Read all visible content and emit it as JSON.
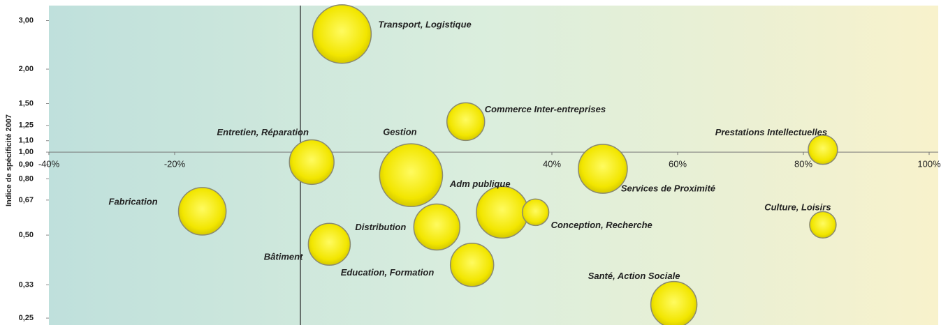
{
  "chart_data": {
    "type": "bubble",
    "y_label": "Indice de spécificité 2007",
    "y_log": true,
    "color": "#f2e600",
    "categories": [
      "Transport, Logistique",
      "Commerce Inter-entreprises",
      "Prestations Intellectuelles",
      "Entretien, Réparation",
      "Gestion",
      "Services de Proximité",
      "Fabrication",
      "Adm publique",
      "Conception, Recherche",
      "Culture, Loisirs",
      "Distribution",
      "Bâtiment",
      "Education, Formation",
      "Santé, Action Sociale"
    ],
    "x": [
      6.6,
      26.3,
      83.1,
      1.8,
      17.6,
      48.1,
      -15.6,
      32.1,
      37.4,
      83.1,
      21.7,
      4.6,
      27.3,
      59.4
    ],
    "values": [
      2.68,
      1.29,
      1.02,
      0.92,
      0.825,
      0.87,
      0.61,
      0.605,
      0.605,
      0.545,
      0.535,
      0.463,
      0.39,
      0.28
    ],
    "sizes": [
      17.6,
      7.3,
      4.4,
      10.2,
      20.3,
      12.3,
      11.6,
      13.7,
      3.6,
      3.6,
      10.9,
      9.0,
      9.6,
      10.9
    ],
    "xlim": [
      -40,
      100
    ],
    "xticks": [
      {
        "value": -40,
        "label": "-40%"
      },
      {
        "value": -20,
        "label": "-20%"
      },
      {
        "value": 0,
        "label": "0%"
      },
      {
        "value": 20,
        "label": "20%"
      },
      {
        "value": 40,
        "label": "40%"
      },
      {
        "value": 60,
        "label": "60%"
      },
      {
        "value": 80,
        "label": "80%"
      },
      {
        "value": 100,
        "label": "100%"
      }
    ],
    "ylim": [
      0.236,
      3.4
    ],
    "yticks": [
      {
        "value": 0.25,
        "label": "0,25"
      },
      {
        "value": 0.33,
        "label": "0,33"
      },
      {
        "value": 0.5,
        "label": "0,50"
      },
      {
        "value": 0.67,
        "label": "0,67"
      },
      {
        "value": 0.8,
        "label": "0,80"
      },
      {
        "value": 0.9,
        "label": "0,90"
      },
      {
        "value": 1.0,
        "label": "1,00"
      },
      {
        "value": 1.1,
        "label": "1,10"
      },
      {
        "value": 1.25,
        "label": "1,25"
      },
      {
        "value": 1.5,
        "label": "1,50"
      },
      {
        "value": 2.0,
        "label": "2,00"
      },
      {
        "value": 3.0,
        "label": "3,00"
      }
    ]
  }
}
